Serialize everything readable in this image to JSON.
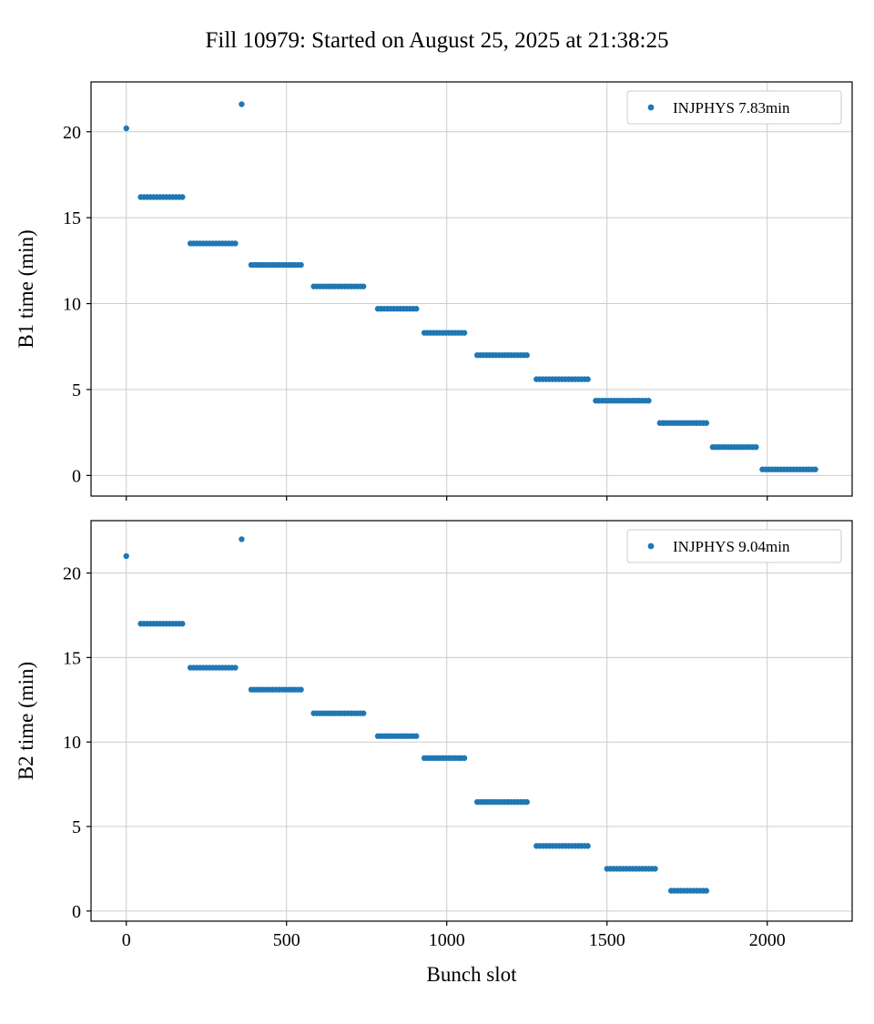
{
  "figure": {
    "title": "Fill 10979: Started on August 25, 2025 at 21:38:25"
  },
  "chart_data": [
    {
      "type": "scatter",
      "name": "B1",
      "ylabel": "B1 time (min)",
      "xlabel": "",
      "legend": "INJPHYS 7.83min",
      "legend_position": "upper right",
      "grid": true,
      "marker_color": "#1f77b4",
      "grid_color": "#cccccc",
      "xlim": [
        -110,
        2265
      ],
      "ylim": [
        -1.2,
        22.9
      ],
      "xticks": [
        0,
        500,
        1000,
        1500,
        2000
      ],
      "yticks": [
        0,
        5,
        10,
        15,
        20
      ],
      "show_xtick_labels": false,
      "points": [
        [
          0,
          20.2
        ],
        [
          360,
          21.6
        ]
      ],
      "segments": [
        [
          45,
          175,
          16.2
        ],
        [
          200,
          340,
          13.5
        ],
        [
          390,
          545,
          12.25
        ],
        [
          585,
          740,
          11.0
        ],
        [
          785,
          905,
          9.7
        ],
        [
          930,
          1055,
          8.3
        ],
        [
          1095,
          1250,
          7.0
        ],
        [
          1280,
          1440,
          5.6
        ],
        [
          1465,
          1630,
          4.35
        ],
        [
          1665,
          1810,
          3.05
        ],
        [
          1830,
          1965,
          1.65
        ],
        [
          1985,
          2150,
          0.35
        ]
      ]
    },
    {
      "type": "scatter",
      "name": "B2",
      "ylabel": "B2 time (min)",
      "xlabel": "Bunch slot",
      "legend": "INJPHYS 9.04min",
      "legend_position": "upper right",
      "grid": true,
      "marker_color": "#1f77b4",
      "grid_color": "#cccccc",
      "xlim": [
        -110,
        2265
      ],
      "ylim": [
        -0.6,
        23.1
      ],
      "xticks": [
        0,
        500,
        1000,
        1500,
        2000
      ],
      "yticks": [
        0,
        5,
        10,
        15,
        20
      ],
      "show_xtick_labels": true,
      "points": [
        [
          0,
          21.0
        ],
        [
          360,
          22.0
        ]
      ],
      "segments": [
        [
          45,
          175,
          17.0
        ],
        [
          200,
          340,
          14.4
        ],
        [
          390,
          545,
          13.1
        ],
        [
          585,
          740,
          11.7
        ],
        [
          785,
          905,
          10.35
        ],
        [
          930,
          1055,
          9.05
        ],
        [
          1095,
          1250,
          6.45
        ],
        [
          1280,
          1440,
          3.85
        ],
        [
          1500,
          1650,
          2.5
        ],
        [
          1700,
          1810,
          1.2
        ]
      ]
    }
  ]
}
